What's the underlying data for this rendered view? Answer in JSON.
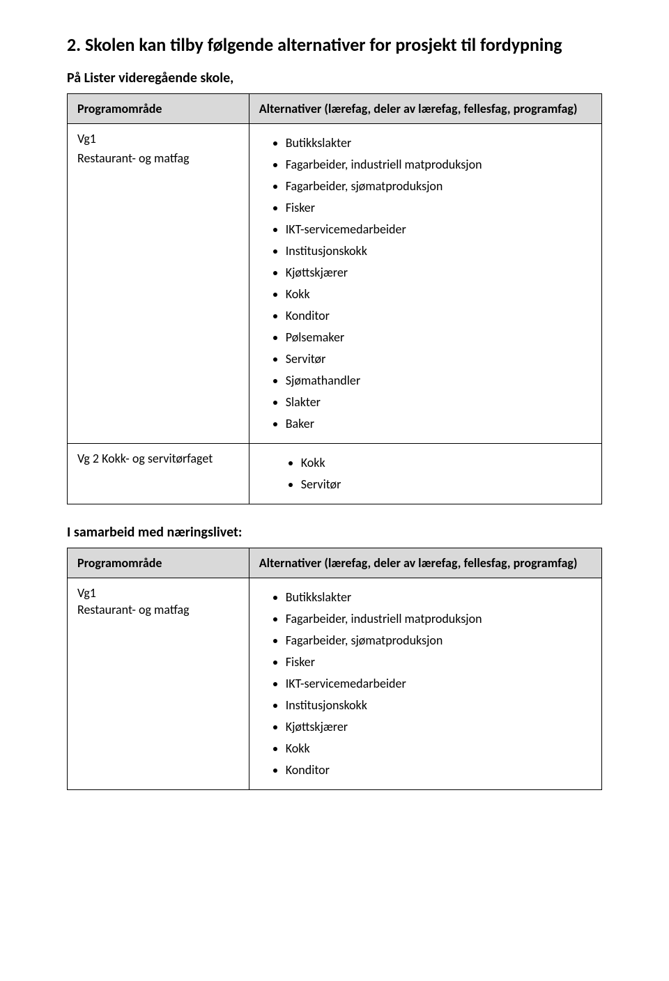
{
  "heading": "2. Skolen kan tilby følgende alternativer for prosjekt til fordypning",
  "subheading": "På Lister videregående skole,",
  "table1": {
    "header_left": "Programområde",
    "header_right": "Alternativer (lærefag, deler av lærefag, fellesfag, programfag)",
    "row1_left_line1": "Vg1",
    "row1_left_line2": "Restaurant- og matfag",
    "row1_items": [
      "Butikkslakter",
      "Fagarbeider, industriell matproduksjon",
      "Fagarbeider, sjømatproduksjon",
      "Fisker",
      "IKT-servicemedarbeider",
      "Institusjonskokk",
      "Kjøttskjærer",
      "Kokk",
      "Konditor",
      "Pølsemaker",
      "Servitør",
      "Sjømathandler",
      "Slakter",
      "Baker"
    ],
    "row2_left_line1": "Vg 2 Kokk- og servitørfaget",
    "row2_items": [
      "Kokk",
      "Servitør"
    ]
  },
  "sub_label": "I samarbeid med næringslivet:",
  "table2": {
    "header_left": "Programområde",
    "header_right": "Alternativer (lærefag, deler av lærefag, fellesfag, programfag)",
    "row1_left_line1": "Vg1",
    "row1_left_line2": "Restaurant- og matfag",
    "row1_items": [
      "Butikkslakter",
      "Fagarbeider, industriell matproduksjon",
      "Fagarbeider, sjømatproduksjon",
      "Fisker",
      "IKT-servicemedarbeider",
      "Institusjonskokk",
      "Kjøttskjærer",
      "Kokk",
      "Konditor"
    ]
  }
}
